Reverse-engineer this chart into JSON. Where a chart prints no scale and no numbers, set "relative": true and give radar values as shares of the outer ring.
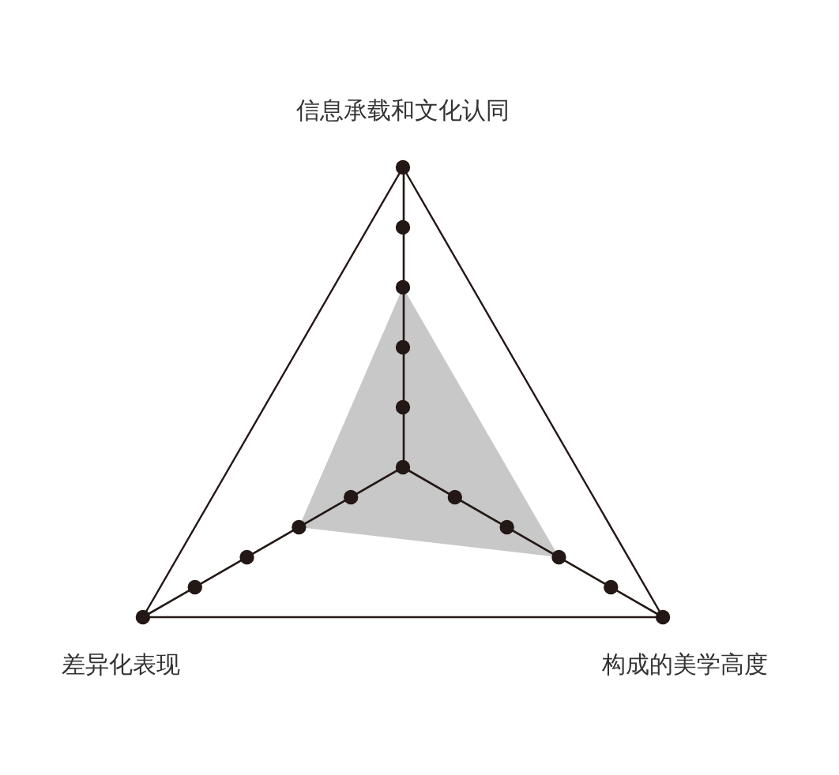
{
  "chart_data": {
    "type": "radar",
    "categories": [
      "信息承载和文化认同",
      "构成的美学高度",
      "差异化表现"
    ],
    "relative": true,
    "series": [
      {
        "color": "#c8c8c8",
        "values": [
          0.6,
          0.6,
          0.4
        ]
      }
    ]
  }
}
